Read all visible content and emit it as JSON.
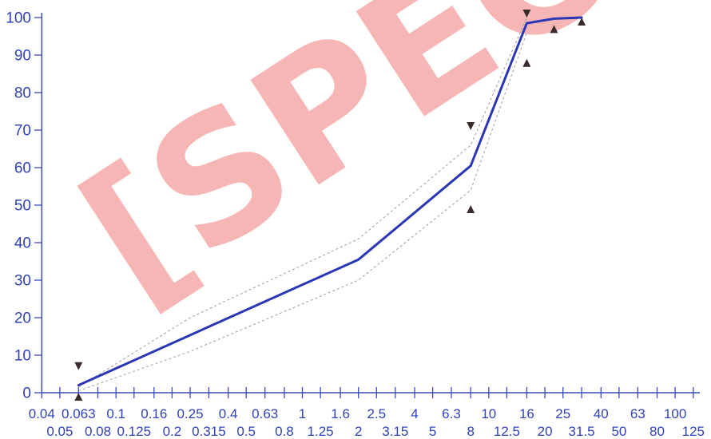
{
  "watermark": "[SPEC",
  "colors": {
    "axis": "#3a4cc0",
    "tick_label": "#3142b8",
    "curve": "#2a36b6",
    "envelope": "#9c9c9c",
    "marker": "#3b2c2c",
    "watermark": "#ef6f6f",
    "background": "#ffffff"
  },
  "chart_data": {
    "type": "line",
    "x_scale": "log",
    "xlim": [
      0.04,
      125
    ],
    "ylim": [
      0,
      100
    ],
    "grid": false,
    "x_ticks": [
      "0.04",
      "0.05",
      "0.063",
      "0.08",
      "0.1",
      "0.125",
      "0.16",
      "0.2",
      "0.25",
      "0.315",
      "0.4",
      "0.5",
      "0.63",
      "0.8",
      "1",
      "1.25",
      "1.6",
      "2",
      "2.5",
      "3.15",
      "4",
      "5",
      "6.3",
      "8",
      "10",
      "12.5",
      "16",
      "20",
      "25",
      "31.5",
      "40",
      "50",
      "63",
      "80",
      "100",
      "125"
    ],
    "y_ticks": [
      "0",
      "10",
      "20",
      "30",
      "40",
      "50",
      "60",
      "70",
      "80",
      "90",
      "100"
    ],
    "series": [
      {
        "x": [
          0.063,
          2,
          8,
          16,
          22.4,
          31.5
        ],
        "y": [
          2,
          35.5,
          60.5,
          98.5,
          99.7,
          100
        ]
      }
    ],
    "envelope": [
      {
        "x": [
          0.063,
          0.25,
          2,
          8,
          16
        ],
        "y": [
          1.5,
          20,
          41,
          66,
          100
        ]
      },
      {
        "x": [
          0.063,
          0.25,
          2,
          8,
          16
        ],
        "y": [
          0.5,
          11,
          30,
          54,
          96
        ]
      }
    ],
    "upper_limit_markers": {
      "x": [
        0.063,
        8,
        16
      ],
      "y": [
        6,
        70,
        100
      ]
    },
    "lower_limit_markers": {
      "x": [
        0.063,
        8,
        16,
        22.4,
        31.5
      ],
      "y": [
        0,
        50,
        89,
        98,
        100
      ]
    }
  }
}
